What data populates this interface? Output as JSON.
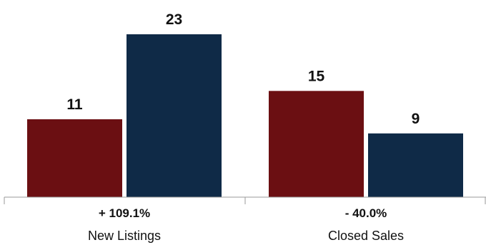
{
  "chart_data": {
    "type": "bar",
    "categories": [
      "New Listings",
      "Closed Sales"
    ],
    "series": [
      {
        "values": [
          11,
          15
        ],
        "color": "#6b0f12"
      },
      {
        "values": [
          23,
          9
        ],
        "color": "#0f2a47"
      }
    ],
    "change_labels": [
      "+ 109.1%",
      "- 40.0%"
    ],
    "ylim": [
      0,
      23
    ],
    "grid": false,
    "legend": "none"
  }
}
